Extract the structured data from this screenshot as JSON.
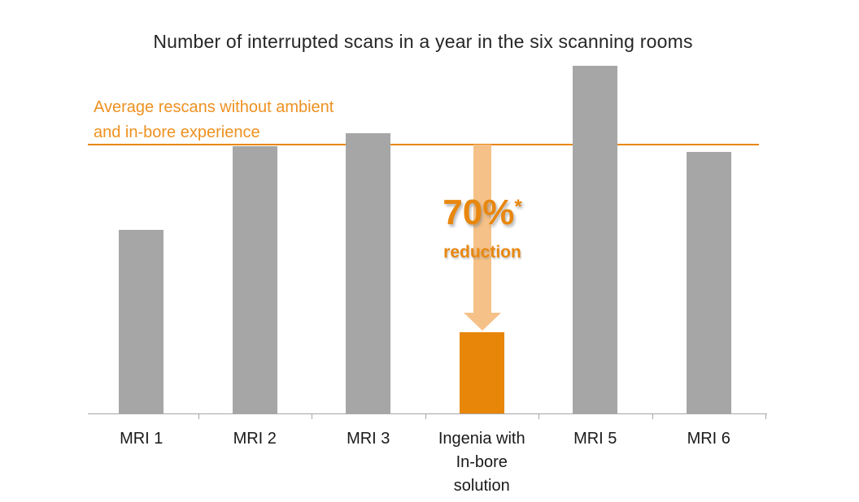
{
  "title": "Number of interrupted scans in a year in the six scanning rooms",
  "annotation": {
    "average_line_label": "Average rescans without ambient\nand in-bore experience",
    "reduction_value": "70%",
    "reduction_asterisk": "*",
    "reduction_word": "reduction"
  },
  "axis": {
    "tick_labels": [
      "MRI 1",
      "MRI 2",
      "MRI 3",
      "Ingenia with\nIn-bore\nsolution",
      "MRI 5",
      "MRI 6"
    ]
  },
  "colors": {
    "bar_gray": "#A6A6A6",
    "bar_orange": "#E8860A",
    "arrow_light_orange": "#F5C188",
    "text_orange": "#EE9121",
    "line_orange": "#E8870F",
    "title_text": "#262626",
    "axis_gray": "#A6A6A6",
    "label_text": "#1A1A1A"
  },
  "chart_data": {
    "type": "bar",
    "title": "Number of interrupted scans in a year in the six scanning rooms",
    "categories": [
      "MRI 1",
      "MRI 2",
      "MRI 3",
      "Ingenia with In-bore solution",
      "MRI 5",
      "MRI 6"
    ],
    "values": [
      68,
      99,
      104,
      30,
      129,
      97
    ],
    "units": "relative index (average without ambient/in-bore experience = 100)",
    "ylim": [
      0,
      130
    ],
    "y_axis_visible": false,
    "grid": false,
    "legend": false,
    "xlabel": "",
    "ylabel": "",
    "highlighted_category": "Ingenia with In-bore solution",
    "reference_line": {
      "value": 100,
      "label": "Average rescans without ambient and in-bore experience",
      "color": "#E8870F"
    },
    "annotations": [
      {
        "text": "70%* reduction",
        "target": "Ingenia with In-bore solution",
        "shape": "down-arrow"
      }
    ]
  }
}
